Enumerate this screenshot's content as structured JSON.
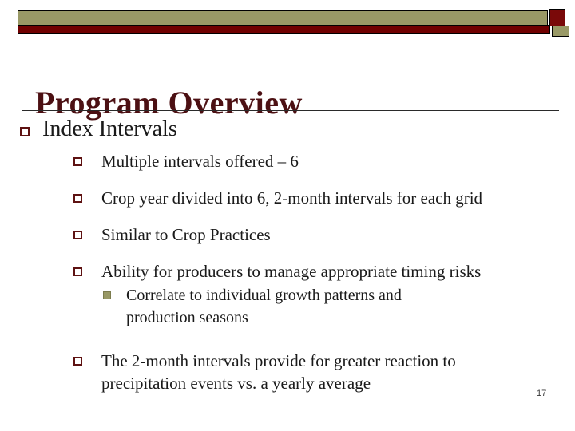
{
  "slide": {
    "title": "Program Overview",
    "page_number": "17"
  },
  "content": {
    "heading": "Index Intervals",
    "bullets": [
      {
        "text": "Multiple intervals offered – 6"
      },
      {
        "text": "Crop year divided into 6, 2-month intervals for each grid"
      },
      {
        "text": "Similar to Crop Practices"
      },
      {
        "text": "Ability for producers to manage appropriate timing risks",
        "sub": [
          {
            "text": "Correlate to individual growth patterns and production seasons"
          }
        ]
      },
      {
        "text": "The 2-month intervals provide for greater reaction to precipitation events vs. a yearly average"
      }
    ]
  },
  "colors": {
    "olive": "#999966",
    "dark_red_bar": "#700000",
    "dark_red_square": "#7a0909",
    "title_maroon": "#4c1013",
    "bullet_maroon": "#5e1212",
    "body_text": "#1a1a1a"
  }
}
